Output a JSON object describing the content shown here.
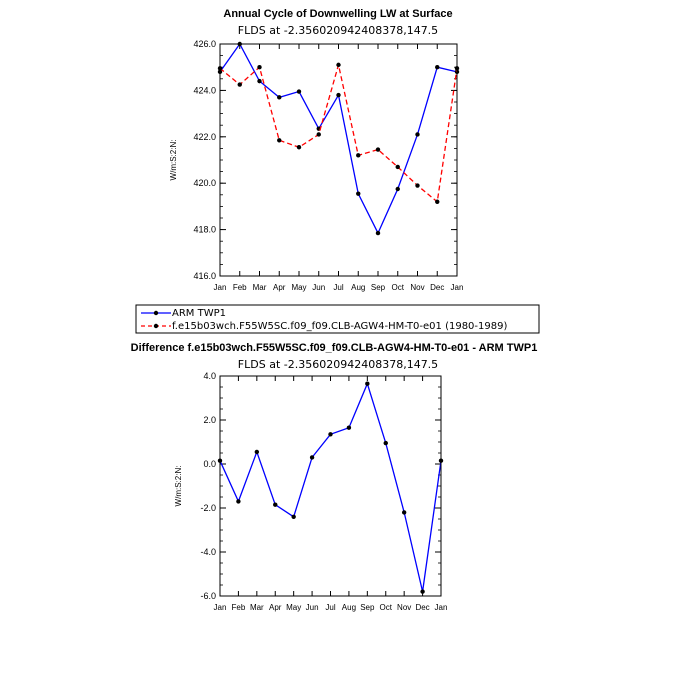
{
  "chart_data": [
    {
      "type": "line",
      "title": "Annual Cycle of Downwelling LW at Surface",
      "subtitle": "FLDS at -2.356020942408378,147.5",
      "ylabel": "W/m:S:2:N:",
      "xlabel": "",
      "ylim": [
        416.0,
        426.0
      ],
      "yticks": [
        "416.0",
        "418.0",
        "420.0",
        "422.0",
        "424.0",
        "426.0"
      ],
      "ytick_values": [
        416,
        418,
        420,
        422,
        424,
        426
      ],
      "categories": [
        "Jan",
        "Feb",
        "Mar",
        "Apr",
        "May",
        "Jun",
        "Jul",
        "Aug",
        "Sep",
        "Oct",
        "Nov",
        "Dec",
        "Jan"
      ],
      "series": [
        {
          "name": "ARM TWP1",
          "color": "#0000ff",
          "dashed": false,
          "values": [
            424.8,
            426.0,
            424.4,
            423.7,
            423.95,
            422.35,
            423.8,
            419.55,
            417.85,
            419.75,
            422.1,
            425.0,
            424.8
          ]
        },
        {
          "name": "f.e15b03wch.F55W5SC.f09_f09.CLB-AGW4-HM-T0-e01 (1980-1989)",
          "color": "#ff0000",
          "dashed": true,
          "values": [
            424.95,
            424.25,
            425.0,
            421.85,
            421.55,
            422.1,
            425.1,
            421.2,
            421.45,
            420.7,
            419.9,
            419.2,
            424.95
          ]
        }
      ]
    },
    {
      "type": "line",
      "title": "Difference f.e15b03wch.F55W5SC.f09_f09.CLB-AGW4-HM-T0-e01 - ARM TWP1",
      "subtitle": "FLDS at -2.356020942408378,147.5",
      "ylabel": "W/m:S:2:N:",
      "xlabel": "",
      "ylim": [
        -6.0,
        4.0
      ],
      "yticks": [
        "-6.0",
        "-4.0",
        "-2.0",
        "0.0",
        "2.0",
        "4.0"
      ],
      "ytick_values": [
        -6,
        -4,
        -2,
        0,
        2,
        4
      ],
      "categories": [
        "Jan",
        "Feb",
        "Mar",
        "Apr",
        "May",
        "Jun",
        "Jul",
        "Aug",
        "Sep",
        "Oct",
        "Nov",
        "Dec",
        "Jan"
      ],
      "series": [
        {
          "name": "Difference",
          "color": "#0000ff",
          "dashed": false,
          "values": [
            0.15,
            -1.7,
            0.55,
            -1.85,
            -2.4,
            0.3,
            1.35,
            1.65,
            3.65,
            0.95,
            -2.2,
            -5.8,
            0.15
          ]
        }
      ]
    }
  ],
  "legend": {
    "items": [
      {
        "label": "ARM TWP1",
        "color": "#0000ff",
        "dashed": false
      },
      {
        "label": "f.e15b03wch.F55W5SC.f09_f09.CLB-AGW4-HM-T0-e01 (1980-1989)",
        "color": "#ff0000",
        "dashed": true
      }
    ]
  }
}
